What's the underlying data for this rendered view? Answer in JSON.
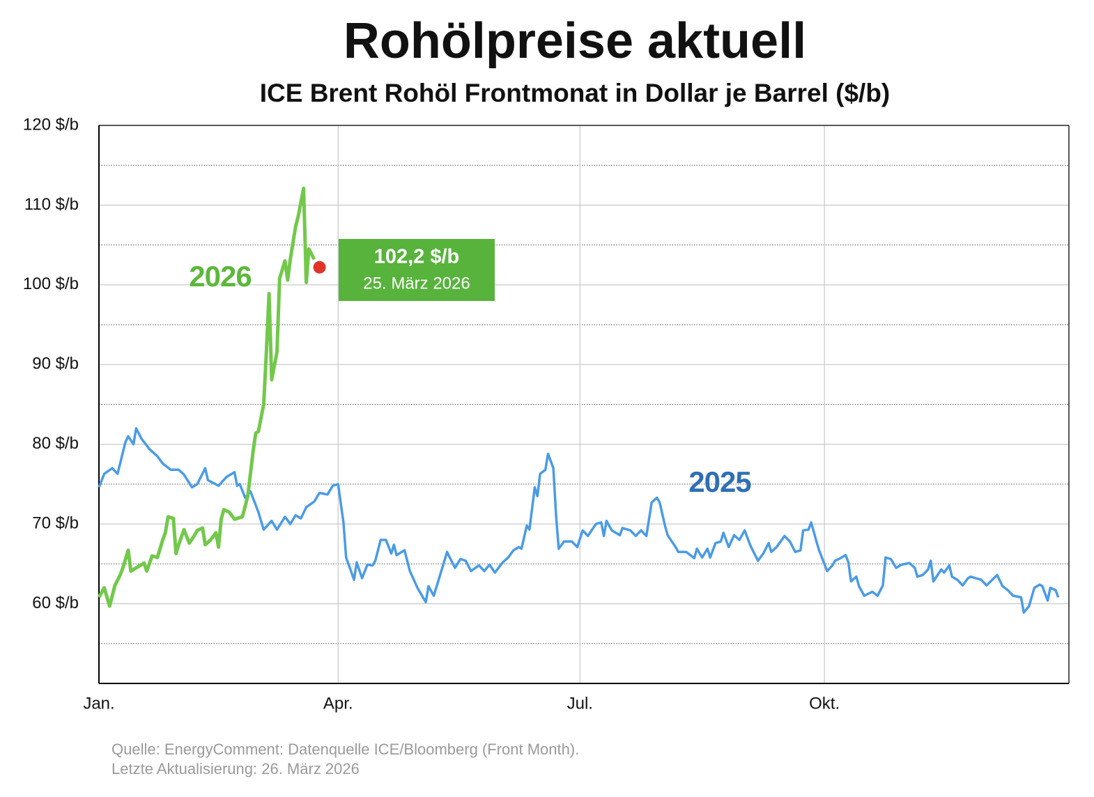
{
  "chart_data": {
    "type": "line",
    "title": "Rohölpreise aktuell",
    "subtitle": "ICE Brent Rohöl Frontmonat in Dollar je Barrel ($/b)",
    "xlim": [
      0,
      365
    ],
    "xticks": [
      {
        "value": 0,
        "label": "Jan."
      },
      {
        "value": 90,
        "label": "Apr."
      },
      {
        "value": 181,
        "label": "Jul."
      },
      {
        "value": 273,
        "label": "Okt."
      }
    ],
    "ylim": [
      50,
      120
    ],
    "yticks": [
      {
        "value": 60,
        "label": "60 $/b"
      },
      {
        "value": 70,
        "label": "70 $/b"
      },
      {
        "value": 80,
        "label": "80 $/b"
      },
      {
        "value": 90,
        "label": "90 $/b"
      },
      {
        "value": 100,
        "label": "100 $/b"
      },
      {
        "value": 110,
        "label": "110 $/b"
      },
      {
        "value": 120,
        "label": "120 $/b"
      }
    ],
    "minor_yticks": [
      55,
      65,
      75,
      85,
      95,
      105,
      115
    ],
    "grid": true,
    "series": [
      {
        "name": "2025",
        "color": "#4a9be6",
        "label_color": "#2f6fb5",
        "x": [
          0,
          2,
          5,
          7,
          10,
          11,
          13,
          14,
          16,
          19,
          22,
          24,
          27,
          30,
          32,
          35,
          37,
          40,
          41,
          45,
          48,
          51,
          52,
          53,
          55,
          57,
          60,
          62,
          65,
          67,
          70,
          72,
          74,
          76,
          78,
          81,
          83,
          86,
          88,
          90,
          92,
          93,
          96,
          97,
          99,
          101,
          103,
          104,
          106,
          108,
          110,
          111,
          112,
          115,
          117,
          120,
          123,
          124,
          126,
          128,
          131,
          132,
          134,
          136,
          138,
          140,
          143,
          145,
          147,
          149,
          152,
          154,
          156,
          158,
          159,
          161,
          162,
          164,
          165,
          166,
          168,
          169,
          171,
          172,
          173,
          175,
          178,
          180,
          182,
          184,
          187,
          189,
          190,
          191,
          193,
          196,
          197,
          200,
          202,
          204,
          206,
          208,
          210,
          211,
          213,
          214,
          217,
          218,
          221,
          224,
          225,
          227,
          229,
          230,
          232,
          234,
          235,
          237,
          239,
          241,
          243,
          245,
          246,
          248,
          250,
          252,
          253,
          255,
          258,
          260,
          262,
          264,
          265,
          267,
          268,
          270,
          271,
          274,
          276,
          277,
          279,
          281,
          282,
          283,
          285,
          286,
          288,
          291,
          293,
          295,
          296,
          298,
          300,
          302,
          305,
          307,
          308,
          310,
          312,
          313,
          314,
          317,
          318,
          320,
          321,
          323,
          325,
          327,
          328,
          332,
          334,
          338,
          340,
          342,
          344,
          347,
          348,
          350,
          352,
          354,
          355,
          357,
          358,
          360,
          361
        ],
        "values": [
          74.6,
          76.3,
          77,
          76.3,
          80.3,
          81,
          80,
          82,
          80.7,
          79.4,
          78.5,
          77.6,
          76.8,
          76.8,
          76.2,
          74.6,
          75,
          77,
          75.5,
          74.8,
          75.9,
          76.5,
          74.8,
          75,
          73.3,
          74.1,
          71.5,
          69.3,
          70.4,
          69.3,
          70.9,
          70,
          71.1,
          70.7,
          72.1,
          72.8,
          73.9,
          73.7,
          74.8,
          75,
          70.2,
          65.8,
          63,
          65.2,
          63.2,
          64.9,
          64.8,
          65.4,
          68,
          68,
          66.3,
          67.4,
          66.1,
          66.7,
          64.1,
          61.9,
          60.2,
          62.2,
          61,
          63.2,
          66.5,
          65.8,
          64.5,
          65.6,
          65.4,
          64.1,
          64.8,
          64.1,
          64.9,
          63.9,
          65.2,
          65.8,
          66.7,
          67.1,
          66.9,
          69.8,
          69.3,
          74.6,
          73.5,
          76.3,
          76.8,
          78.8,
          77,
          71.1,
          66.9,
          67.8,
          67.8,
          67.1,
          69.2,
          68.5,
          70,
          70.2,
          68.5,
          70.4,
          69.2,
          68.6,
          69.5,
          69.2,
          68.5,
          69.2,
          68.5,
          72.7,
          73.3,
          72.7,
          69.8,
          68.6,
          67.1,
          66.5,
          66.5,
          65.7,
          66.9,
          65.8,
          66.9,
          65.8,
          67.6,
          67.8,
          68.9,
          67.1,
          68.6,
          68,
          69.2,
          67.4,
          66.7,
          65.4,
          66.3,
          67.6,
          66.5,
          67.1,
          68.5,
          67.8,
          66.5,
          66.7,
          69.2,
          69.3,
          70.2,
          67.8,
          66.7,
          64.1,
          64.8,
          65.4,
          65.7,
          66.1,
          65.2,
          62.8,
          63.4,
          62.2,
          61,
          61.5,
          61,
          62.3,
          65.8,
          65.6,
          64.5,
          64.9,
          65.1,
          64.5,
          63.4,
          63.6,
          64.3,
          65.4,
          62.8,
          64.3,
          63.9,
          64.8,
          63.4,
          63,
          62.3,
          63.2,
          63.4,
          63,
          62.3,
          63.6,
          62.2,
          61.7,
          61,
          60.8,
          58.9,
          59.7,
          62,
          62.4,
          62.2,
          60.4,
          62,
          61.7,
          60.8
        ]
      },
      {
        "name": "2026",
        "color": "#72c84b",
        "label_color": "#5cb83a",
        "x": [
          0,
          2,
          4,
          6,
          8,
          9,
          11,
          12,
          14,
          17,
          18,
          20,
          22,
          24,
          25,
          26,
          28,
          29,
          30,
          32,
          34,
          36,
          37,
          39,
          40,
          42,
          44,
          45,
          46,
          47,
          49,
          51,
          54,
          56,
          58,
          59,
          60,
          62,
          63,
          64,
          65,
          67,
          68,
          70,
          71,
          72,
          74,
          75,
          77,
          78,
          79,
          81
        ],
        "values": [
          60.8,
          62,
          59.7,
          62.3,
          63.6,
          64.5,
          66.7,
          64.1,
          64.5,
          65.1,
          64.1,
          66,
          65.8,
          68,
          68.9,
          70.9,
          70.7,
          66.3,
          67.4,
          69.3,
          67.6,
          68.6,
          69.2,
          69.5,
          67.4,
          68,
          68.9,
          67.1,
          70.6,
          71.8,
          71.5,
          70.6,
          70.9,
          73.5,
          79.1,
          81.4,
          81.6,
          85,
          91.6,
          98.9,
          88.1,
          91.6,
          100.8,
          103,
          100.6,
          103.2,
          107.3,
          108.6,
          112.1,
          100.3,
          104.5,
          103.2
        ]
      }
    ],
    "annotation": {
      "x": 83,
      "value": 102.2,
      "value_label": "102,2 $/b",
      "date": "25. März 2026",
      "color": "#e0342a",
      "box_color": "#57b33c"
    },
    "source": "Quelle: EnergyComment: Datenquelle ICE/Bloomberg (Front Month).",
    "updated": "Letzte Aktualisierung: 26. März 2026"
  }
}
